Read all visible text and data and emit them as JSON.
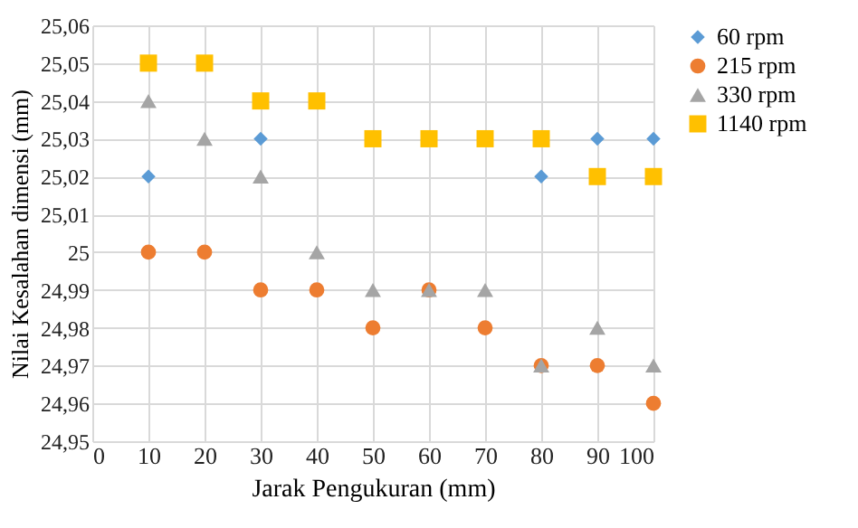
{
  "chart_data": {
    "type": "scatter",
    "xlabel": "Jarak Pengukuran (mm)",
    "ylabel": "Nilai Kesalahan dimensi (mm)",
    "x": [
      10,
      20,
      30,
      40,
      50,
      60,
      70,
      80,
      90,
      100
    ],
    "xlim": [
      0,
      100
    ],
    "xticks": [
      0,
      10,
      20,
      30,
      40,
      50,
      60,
      70,
      80,
      90,
      100
    ],
    "ylim": [
      24.95,
      25.06
    ],
    "yticks": [
      {
        "value": 24.95,
        "label": "24,95"
      },
      {
        "value": 24.96,
        "label": "24,96"
      },
      {
        "value": 24.97,
        "label": "24,97"
      },
      {
        "value": 24.98,
        "label": "24,98"
      },
      {
        "value": 24.99,
        "label": "24,99"
      },
      25,
      {
        "value": 25.01,
        "label": "25,01"
      },
      {
        "value": 25.02,
        "label": "25,02"
      },
      {
        "value": 25.03,
        "label": "25,03"
      },
      {
        "value": 25.04,
        "label": "25,04"
      },
      {
        "value": 25.05,
        "label": "25,05"
      },
      {
        "value": 25.06,
        "label": "25,06"
      }
    ],
    "grid": true,
    "legend": "right",
    "series": [
      {
        "name": "60 rpm",
        "color": "#5b9bd5",
        "marker": "diamond",
        "values": [
          25.02,
          null,
          25.03,
          null,
          null,
          null,
          null,
          25.02,
          25.03,
          25.03
        ]
      },
      {
        "name": "215 rpm",
        "color": "#ed7d31",
        "marker": "circle",
        "values": [
          25.0,
          25.0,
          24.99,
          24.99,
          24.98,
          24.99,
          24.98,
          24.97,
          24.97,
          24.96
        ]
      },
      {
        "name": "330 rpm",
        "color": "#a5a5a5",
        "marker": "triangle",
        "values": [
          25.04,
          25.03,
          25.02,
          25.0,
          24.99,
          24.99,
          24.99,
          24.97,
          24.98,
          24.97
        ]
      },
      {
        "name": "1140 rpm",
        "color": "#ffc000",
        "marker": "square",
        "values": [
          25.05,
          25.05,
          25.04,
          25.04,
          25.03,
          25.03,
          25.03,
          25.03,
          25.02,
          25.02
        ]
      }
    ]
  }
}
